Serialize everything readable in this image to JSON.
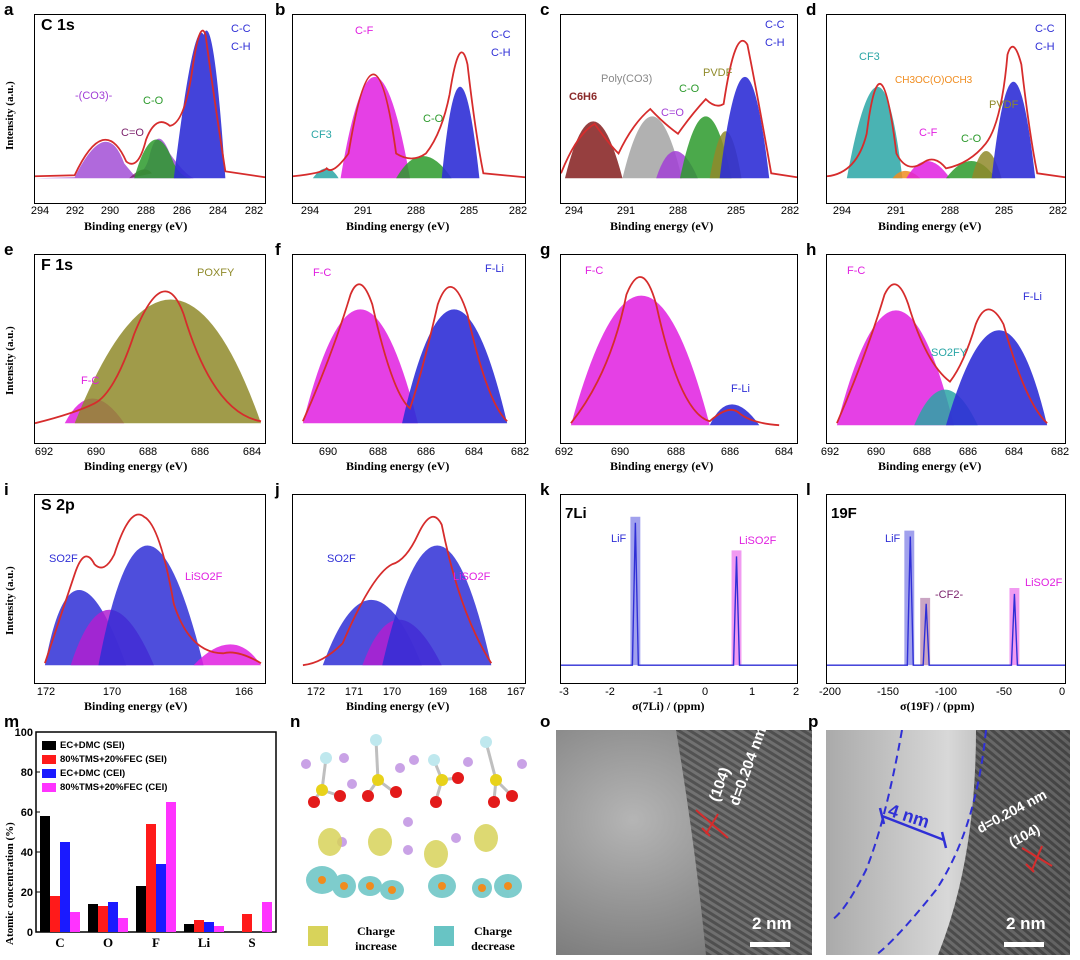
{
  "panels": {
    "a": {
      "label": "a",
      "core": "C 1s",
      "ylabel": "Intensity (a.u.)",
      "xlabel": "Binding energy (eV)",
      "ticks": [
        "294",
        "292",
        "290",
        "288",
        "286",
        "284",
        "282"
      ],
      "ann": {
        "co3": "-(CO3)-",
        "ceo": "C=O",
        "co": "C-O",
        "cc": "C-C",
        "ch": "C-H"
      }
    },
    "b": {
      "label": "b",
      "xlabel": "Binding energy (eV)",
      "ticks": [
        "294",
        "291",
        "288",
        "285",
        "282"
      ],
      "ann": {
        "cf3": "CF3",
        "co": "C-O",
        "cf": "C-F",
        "cc": "C-C",
        "ch": "C-H"
      }
    },
    "c": {
      "label": "c",
      "xlabel": "Binding energy (eV)",
      "ticks": [
        "294",
        "291",
        "288",
        "285",
        "282"
      ],
      "ann": {
        "c6h6": "C6H6",
        "polyco3": "Poly(CO3)",
        "ceo": "C=O",
        "co": "C-O",
        "pvdf": "PVDF",
        "cc": "C-C",
        "ch": "C-H"
      }
    },
    "d": {
      "label": "d",
      "xlabel": "Binding energy (eV)",
      "ticks": [
        "294",
        "291",
        "288",
        "285",
        "282"
      ],
      "ann": {
        "cf3": "CF3",
        "ch3": "CH3OC(O)OCH3",
        "pvdf": "PVDF",
        "cf": "C-F",
        "co": "C-O",
        "cc": "C-C",
        "ch": "C-H"
      }
    },
    "e": {
      "label": "e",
      "core": "F 1s",
      "ylabel": "Intensity (a.u.)",
      "xlabel": "Binding energy (eV)",
      "ticks": [
        "692",
        "690",
        "688",
        "686",
        "684"
      ],
      "ann": {
        "po": "POXFY",
        "fc": "F-C"
      }
    },
    "f": {
      "label": "f",
      "xlabel": "Binding energy (eV)",
      "ticks": [
        "690",
        "688",
        "686",
        "684",
        "682"
      ],
      "ann": {
        "fc": "F-C",
        "fli": "F-Li"
      }
    },
    "g": {
      "label": "g",
      "xlabel": "Binding energy (eV)",
      "ticks": [
        "692",
        "690",
        "688",
        "686",
        "684"
      ],
      "ann": {
        "fc": "F-C",
        "fli": "F-Li"
      }
    },
    "h": {
      "label": "h",
      "xlabel": "Binding energy (eV)",
      "ticks": [
        "692",
        "690",
        "688",
        "686",
        "684",
        "682"
      ],
      "ann": {
        "fc": "F-C",
        "fli": "F-Li",
        "so2fy": "SO2FY"
      }
    },
    "i": {
      "label": "i",
      "core": "S 2p",
      "ylabel": "Intensity (a.u.)",
      "xlabel": "Binding energy (eV)",
      "ticks": [
        "172",
        "170",
        "168",
        "166"
      ],
      "ann": {
        "so2f": "SO2F",
        "liso2f": "LiSO2F"
      }
    },
    "j": {
      "label": "j",
      "xlabel": "Binding energy (eV)",
      "ticks": [
        "172",
        "171",
        "170",
        "169",
        "168",
        "167"
      ],
      "ann": {
        "so2f": "SO2F",
        "liso2f": "LiSO2F"
      }
    },
    "k": {
      "label": "k",
      "core": "7Li",
      "xlabel": "σ(7Li) / (ppm)",
      "ticks": [
        "-3",
        "-2",
        "-1",
        "0",
        "1",
        "2"
      ],
      "ann": {
        "lif": "LiF",
        "liso2f": "LiSO2F"
      }
    },
    "l": {
      "label": "l",
      "core": "19F",
      "xlabel": "σ(19F) / (ppm)",
      "ticks": [
        "-200",
        "-150",
        "-100",
        "-50",
        "0"
      ],
      "ann": {
        "lif": "LiF",
        "cf2": "-CF2-",
        "liso2f": "LiSO2F"
      }
    },
    "m": {
      "label": "m",
      "ylabel": "Atomic concentration (%)"
    },
    "n": {
      "label": "n",
      "increase": "Charge increase",
      "decrease": "Charge decrease"
    },
    "o": {
      "label": "o",
      "dspacing": "d=0.204 nm",
      "plane": "(104)",
      "scale": "2 nm"
    },
    "p": {
      "label": "p",
      "dspacing": "d=0.204 nm",
      "plane": "(104)",
      "scale": "2 nm",
      "width": "4 nm"
    }
  },
  "colors": {
    "blue": "#2f2fd6",
    "green": "#2c9a2c",
    "magenta": "#e01fe0",
    "purple": "#a23fd6",
    "olive": "#8f8a2a",
    "teal": "#2aa6a6",
    "brown": "#8b2a2a",
    "gray": "#a9a9a9",
    "red": "#d62c2c",
    "orange": "#f08c1e"
  },
  "chart_data": {
    "type": "bar",
    "categories": [
      "C",
      "O",
      "F",
      "Li",
      "S"
    ],
    "ylim": [
      0,
      100
    ],
    "yticks": [
      "0",
      "20",
      "40",
      "60",
      "80",
      "100"
    ],
    "ylabel": "Atomic concentration (%)",
    "series": [
      {
        "name": "EC+DMC (SEI)",
        "color": "#000000",
        "values": [
          58,
          14,
          23,
          4,
          0
        ]
      },
      {
        "name": "80%TMS+20%FEC (SEI)",
        "color": "#ff1a1a",
        "values": [
          18,
          13,
          54,
          6,
          9
        ]
      },
      {
        "name": "EC+DMC (CEI)",
        "color": "#1a1aff",
        "values": [
          45,
          15,
          34,
          5,
          0
        ]
      },
      {
        "name": "80%TMS+20%FEC (CEI)",
        "color": "#ff33ff",
        "values": [
          10,
          7,
          65,
          3,
          15
        ]
      }
    ]
  }
}
